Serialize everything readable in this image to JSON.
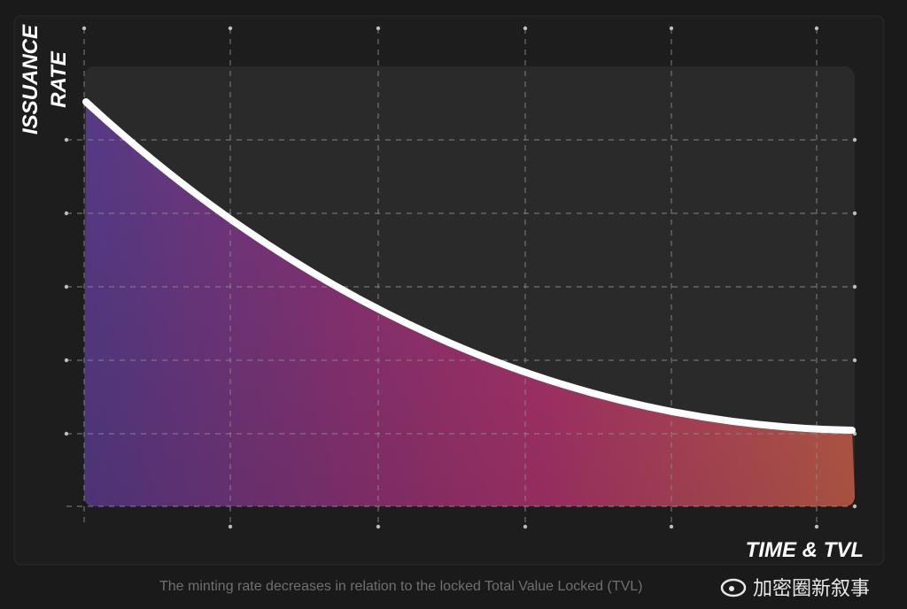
{
  "y_label": [
    "ISSUANCE",
    "RATE"
  ],
  "x_label": "TIME & TVL",
  "caption": "The minting rate decreases in relation to the locked Total Value Locked (TVL)",
  "watermark": "加密圈新叙事"
}
